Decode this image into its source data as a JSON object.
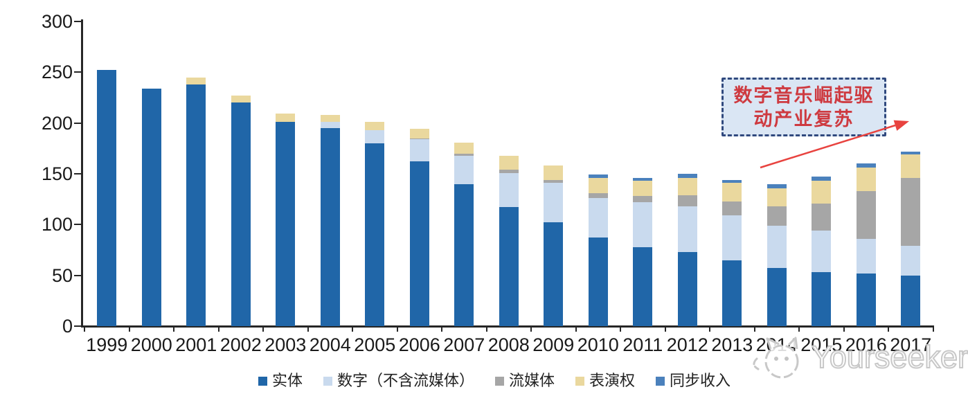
{
  "chart_data": {
    "type": "bar",
    "stacked": true,
    "title": "",
    "xlabel": "",
    "ylabel": "",
    "grid": false,
    "legend_position": "bottom",
    "ylim": [
      0,
      300
    ],
    "ytick_step": 50,
    "yticks": [
      0,
      50,
      100,
      150,
      200,
      250,
      300
    ],
    "categories": [
      "1999",
      "2000",
      "2001",
      "2002",
      "2003",
      "2004",
      "2005",
      "2006",
      "2007",
      "2008",
      "2009",
      "2010",
      "2011",
      "2012",
      "2013",
      "2014",
      "2015",
      "2016",
      "2017"
    ],
    "series": [
      {
        "name": "实体",
        "color": "#2066A8",
        "values": [
          252,
          234,
          238,
          220,
          201,
          195,
          180,
          162,
          140,
          117,
          102,
          87,
          78,
          73,
          65,
          57,
          53,
          52,
          50
        ]
      },
      {
        "name": "数字（不含流媒体）",
        "color": "#C9DAEE",
        "values": [
          0,
          0,
          0,
          0,
          0,
          6,
          13,
          22,
          28,
          34,
          39,
          39,
          44,
          45,
          44,
          42,
          41,
          34,
          29
        ]
      },
      {
        "name": "流媒体",
        "color": "#A6A6A6",
        "values": [
          0,
          0,
          0,
          0,
          0,
          0,
          0,
          1,
          2,
          3,
          3,
          5,
          6,
          11,
          14,
          19,
          27,
          47,
          67
        ]
      },
      {
        "name": "表演权",
        "color": "#EAD89E",
        "values": [
          0,
          0,
          7,
          7,
          8,
          7,
          8,
          9,
          11,
          14,
          14,
          15,
          15,
          17,
          18,
          18,
          22,
          23,
          23
        ]
      },
      {
        "name": "同步收入",
        "color": "#4B81BC",
        "values": [
          0,
          0,
          0,
          0,
          0,
          0,
          0,
          0,
          0,
          0,
          0,
          3,
          3,
          4,
          3,
          4,
          4,
          4,
          3
        ]
      }
    ],
    "totals": [
      252,
      234,
      245,
      227,
      209,
      208,
      201,
      194,
      181,
      168,
      158,
      149,
      146,
      150,
      144,
      140,
      147,
      160,
      172
    ]
  },
  "annotation": {
    "line1": "数字音乐崛起驱",
    "line2": "动产业复苏",
    "box_fill": "#DAE6F4",
    "box_border_color": "#30497E",
    "text_color": "#CE3A40",
    "arrow_color": "#E8433F"
  },
  "watermark": {
    "text": "Yourseeker",
    "logo_icon": "cat-face-icon",
    "color": "#C8C8C8"
  },
  "colors": {
    "axis": "#262626",
    "tick_label": "#1A1A1A",
    "background": "#FFFFFF"
  }
}
